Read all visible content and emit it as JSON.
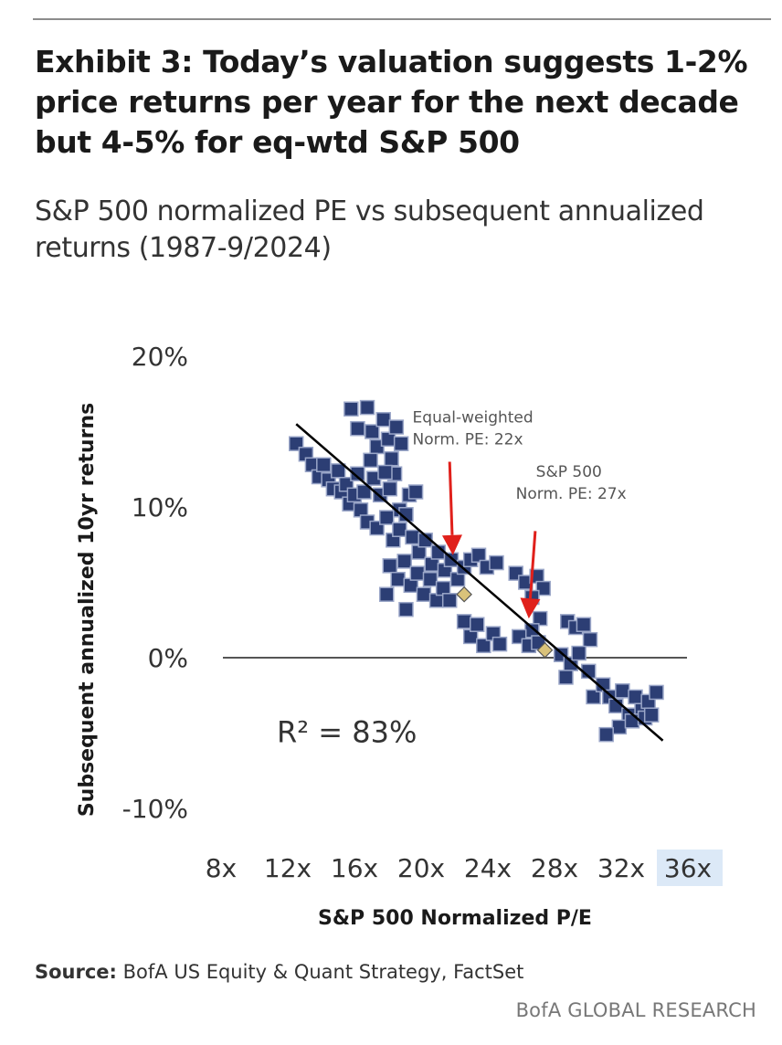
{
  "header": {
    "title": "Exhibit 3: Today’s valuation suggests 1-2% price returns per year for the next decade but 4-5% for eq-wtd S&P 500",
    "subtitle": "S&P 500 normalized PE vs subsequent annualized returns (1987-9/2024)"
  },
  "footer": {
    "source_label": "Source:",
    "source_text": " BofA US Equity & Quant Strategy, FactSet",
    "brand": "BofA GLOBAL RESEARCH"
  },
  "colors": {
    "marker_fill": "#2c3e74",
    "marker_edge": "#9aa6c8",
    "trend_line": "#000000",
    "zero_line": "#555555",
    "arrow": "#e0201b",
    "highlight_marker": "#d9c27a",
    "highlight_tick_bg": "#dce9f7"
  },
  "chart_data": {
    "type": "scatter",
    "xlabel": "S&P 500 Normalized P/E",
    "ylabel": "Subsequent annualized 10yr returns",
    "xlim": [
      8,
      36
    ],
    "ylim": [
      -10,
      20
    ],
    "x_ticks": [
      8,
      12,
      16,
      20,
      24,
      28,
      32,
      36
    ],
    "x_tick_labels": [
      "8x",
      "12x",
      "16x",
      "20x",
      "24x",
      "28x",
      "32x",
      "36x"
    ],
    "highlighted_x_tick": "36x",
    "y_ticks": [
      -10,
      0,
      10,
      20
    ],
    "y_tick_labels": [
      "-10%",
      "0%",
      "10%",
      "20%"
    ],
    "zero_line": true,
    "grid": false,
    "trend_line": {
      "x": [
        12.2,
        34.9
      ],
      "y": [
        15.5,
        -5.5
      ]
    },
    "r_squared_label": "R² = 83%",
    "annotations": [
      {
        "text_lines": [
          "Equal-weighted",
          "Norm. PE: 22x"
        ],
        "x": 22,
        "y": 7.5
      },
      {
        "text_lines": [
          "S&P 500",
          "Norm. PE: 27x"
        ],
        "x": 27,
        "y": 3.2
      }
    ],
    "highlight_points": [
      {
        "x": 22.6,
        "y": 4.2
      },
      {
        "x": 27.6,
        "y": 0.5
      }
    ],
    "points": [
      [
        12.2,
        14.2
      ],
      [
        12.8,
        13.5
      ],
      [
        13.2,
        12.8
      ],
      [
        13.6,
        12.0
      ],
      [
        13.9,
        12.8
      ],
      [
        14.2,
        11.8
      ],
      [
        14.5,
        11.2
      ],
      [
        14.8,
        12.4
      ],
      [
        15.0,
        11.0
      ],
      [
        15.3,
        11.5
      ],
      [
        15.5,
        10.2
      ],
      [
        15.8,
        10.8
      ],
      [
        16.0,
        12.2
      ],
      [
        16.2,
        9.8
      ],
      [
        16.4,
        11.0
      ],
      [
        15.6,
        16.5
      ],
      [
        16.0,
        15.2
      ],
      [
        16.6,
        16.6
      ],
      [
        16.9,
        15.0
      ],
      [
        17.2,
        14.0
      ],
      [
        17.6,
        15.8
      ],
      [
        17.9,
        14.5
      ],
      [
        18.1,
        13.2
      ],
      [
        18.4,
        15.3
      ],
      [
        18.7,
        14.2
      ],
      [
        18.3,
        12.2
      ],
      [
        16.8,
        13.1
      ],
      [
        17.0,
        11.9
      ],
      [
        17.4,
        10.8
      ],
      [
        17.7,
        12.3
      ],
      [
        18.0,
        11.2
      ],
      [
        18.6,
        9.8
      ],
      [
        19.2,
        10.8
      ],
      [
        19.6,
        11.0
      ],
      [
        16.6,
        9.0
      ],
      [
        17.2,
        8.6
      ],
      [
        17.8,
        9.3
      ],
      [
        18.2,
        7.8
      ],
      [
        18.6,
        8.5
      ],
      [
        19.0,
        9.5
      ],
      [
        19.4,
        8.0
      ],
      [
        19.8,
        7.0
      ],
      [
        20.2,
        7.8
      ],
      [
        20.6,
        6.2
      ],
      [
        21.0,
        7.0
      ],
      [
        21.4,
        5.8
      ],
      [
        21.8,
        6.5
      ],
      [
        22.2,
        5.2
      ],
      [
        22.6,
        6.0
      ],
      [
        18.0,
        6.1
      ],
      [
        18.5,
        5.2
      ],
      [
        18.9,
        6.4
      ],
      [
        19.3,
        4.8
      ],
      [
        19.7,
        5.6
      ],
      [
        20.1,
        4.2
      ],
      [
        20.5,
        5.2
      ],
      [
        20.9,
        3.8
      ],
      [
        21.3,
        4.6
      ],
      [
        21.7,
        3.8
      ],
      [
        17.8,
        4.2
      ],
      [
        19.0,
        3.2
      ],
      [
        23.0,
        6.5
      ],
      [
        23.5,
        6.8
      ],
      [
        24.0,
        6.0
      ],
      [
        24.6,
        6.3
      ],
      [
        25.8,
        5.6
      ],
      [
        26.4,
        5.0
      ],
      [
        27.1,
        5.4
      ],
      [
        27.5,
        4.6
      ],
      [
        26.8,
        4.0
      ],
      [
        27.3,
        2.6
      ],
      [
        26.8,
        1.8
      ],
      [
        22.6,
        2.4
      ],
      [
        23.0,
        1.4
      ],
      [
        23.4,
        2.2
      ],
      [
        23.8,
        0.8
      ],
      [
        24.4,
        1.6
      ],
      [
        24.8,
        0.9
      ],
      [
        26.0,
        1.4
      ],
      [
        26.6,
        0.8
      ],
      [
        27.2,
        1.0
      ],
      [
        29.0,
        2.4
      ],
      [
        29.5,
        2.0
      ],
      [
        30.0,
        2.2
      ],
      [
        30.4,
        1.2
      ],
      [
        28.6,
        0.2
      ],
      [
        29.2,
        -0.4
      ],
      [
        29.7,
        0.3
      ],
      [
        30.3,
        -0.9
      ],
      [
        28.9,
        -1.3
      ],
      [
        30.6,
        -2.6
      ],
      [
        31.2,
        -1.8
      ],
      [
        31.6,
        -2.6
      ],
      [
        32.0,
        -3.2
      ],
      [
        32.4,
        -2.2
      ],
      [
        32.8,
        -3.8
      ],
      [
        33.2,
        -2.6
      ],
      [
        33.6,
        -3.5
      ],
      [
        34.0,
        -2.9
      ],
      [
        34.5,
        -2.3
      ],
      [
        32.2,
        -4.6
      ],
      [
        33.0,
        -4.2
      ],
      [
        33.8,
        -4.0
      ],
      [
        34.2,
        -3.8
      ],
      [
        31.4,
        -5.1
      ]
    ]
  }
}
